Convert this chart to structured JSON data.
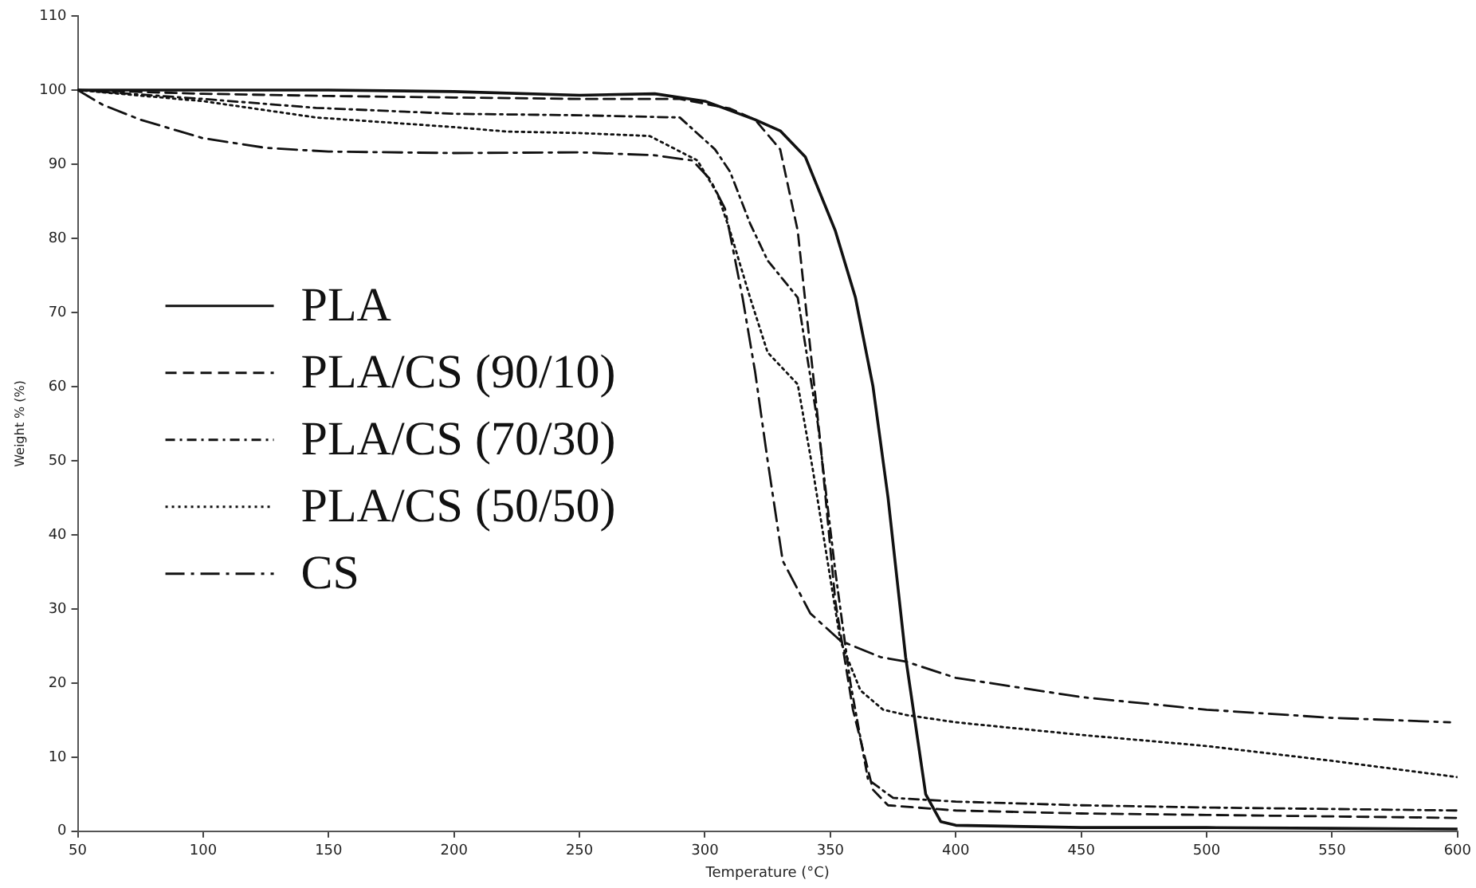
{
  "chart_data": {
    "type": "line",
    "xlabel": "Temperature (°C)",
    "ylabel": "Weight % (%)",
    "xlim": [
      50,
      600
    ],
    "xticks": [
      50,
      100,
      150,
      200,
      250,
      300,
      350,
      400,
      450,
      500,
      550,
      600
    ],
    "ylim": [
      0,
      110
    ],
    "yticks": [
      0,
      10,
      20,
      30,
      40,
      50,
      60,
      70,
      80,
      90,
      100,
      110
    ],
    "grid": false,
    "legend": "left",
    "marker": "none",
    "series": [
      {
        "name": "PLA",
        "color": "#111111",
        "line_style": "solid",
        "x": [
          50,
          100,
          150,
          200,
          250,
          280,
          300,
          320,
          330,
          340,
          352,
          360,
          367,
          373,
          380,
          388,
          394,
          400,
          450,
          500,
          550,
          600
        ],
        "values": [
          100,
          100,
          100,
          99.8,
          99.3,
          99.5,
          98.5,
          96,
          94.5,
          91,
          81,
          72,
          60,
          45,
          23.5,
          5,
          1.3,
          0.8,
          0.5,
          0.5,
          0.4,
          0.3
        ]
      },
      {
        "name": "PLA/CS (90/10)",
        "color": "#111111",
        "line_style": "dashed",
        "x": [
          50,
          100,
          150,
          200,
          250,
          290,
          310,
          320,
          330,
          337,
          346,
          352,
          359,
          367,
          373,
          400,
          450,
          500,
          550,
          600
        ],
        "values": [
          100,
          99.5,
          99.2,
          99,
          98.8,
          98.8,
          97.5,
          96,
          92,
          81,
          52.5,
          31,
          16.4,
          5.6,
          3.5,
          2.8,
          2.4,
          2.2,
          2,
          1.8
        ]
      },
      {
        "name": "PLA/CS (70/30)",
        "color": "#111111",
        "line_style": "dashdot",
        "x": [
          50,
          100,
          145,
          200,
          250,
          290,
          304,
          310,
          318,
          325,
          337,
          345,
          352,
          358,
          365,
          375,
          400,
          450,
          500,
          550,
          600
        ],
        "values": [
          100,
          98.8,
          97.6,
          96.8,
          96.6,
          96.3,
          92,
          89,
          82,
          77,
          72,
          55,
          35,
          20,
          7,
          4.5,
          4,
          3.5,
          3.2,
          3,
          2.8
        ]
      },
      {
        "name": "PLA/CS (50/50)",
        "color": "#111111",
        "line_style": "dotted",
        "x": [
          50,
          100,
          145,
          200,
          221,
          250,
          278,
          297,
          305,
          310,
          318,
          325,
          337,
          343,
          354,
          362,
          371,
          380,
          400,
          450,
          500,
          550,
          600
        ],
        "values": [
          100,
          98.5,
          96.3,
          95,
          94.4,
          94.2,
          93.8,
          90.5,
          86,
          81,
          72,
          64.6,
          60.3,
          48.8,
          25.7,
          19,
          16.4,
          15.7,
          14.7,
          13,
          11.5,
          9.5,
          7.3
        ]
      },
      {
        "name": "CS",
        "color": "#111111",
        "line_style": "longdashdot",
        "x": [
          50,
          60,
          75,
          90,
          100,
          125,
          150,
          200,
          250,
          280,
          295,
          302,
          308,
          315,
          320,
          325,
          331,
          342,
          354,
          370,
          380,
          400,
          450,
          500,
          550,
          597
        ],
        "values": [
          100,
          98,
          96,
          94.5,
          93.5,
          92.2,
          91.7,
          91.5,
          91.6,
          91.2,
          90.5,
          88,
          84,
          72,
          62,
          50,
          36.5,
          29.4,
          25.7,
          23.5,
          22.9,
          20.7,
          18.1,
          16.4,
          15.3,
          14.7
        ]
      }
    ]
  }
}
